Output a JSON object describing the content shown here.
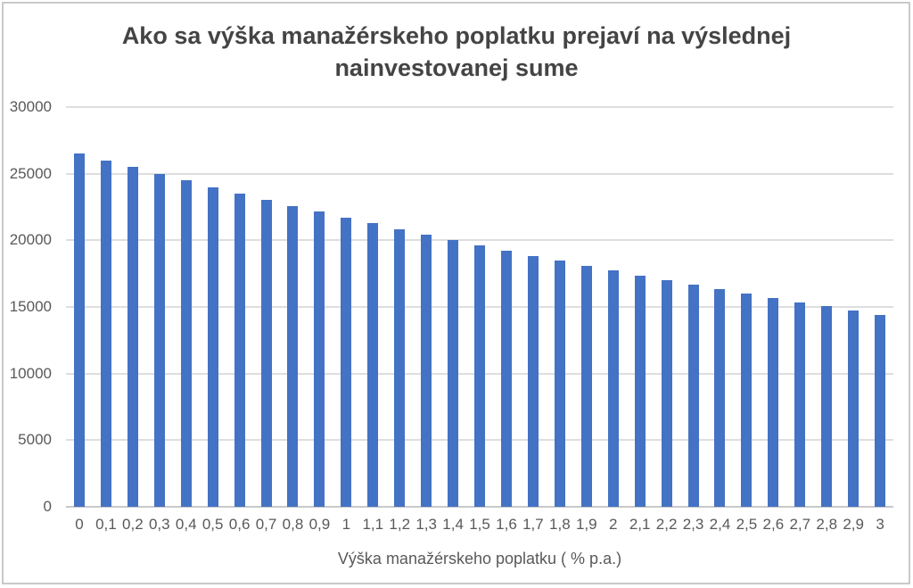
{
  "chart_data": {
    "type": "bar",
    "title": "Ako sa výška manažérskeho poplatku prejaví na výslednej nainvestovanej sume",
    "title_lines": [
      "Ako sa výška manažérskeho poplatku prejaví na výslednej",
      "nainvestovanej sume"
    ],
    "xlabel": "Výška manažérskeho poplatku ( % p.a.)",
    "ylabel": "",
    "categories": [
      "0",
      "0,1",
      "0,2",
      "0,3",
      "0,4",
      "0,5",
      "0,6",
      "0,7",
      "0,8",
      "0,9",
      "1",
      "1,1",
      "1,2",
      "1,3",
      "1,4",
      "1,5",
      "1,6",
      "1,7",
      "1,8",
      "1,9",
      "2",
      "2,1",
      "2,2",
      "2,3",
      "2,4",
      "2,5",
      "2,6",
      "2,7",
      "2,8",
      "2,9",
      "3"
    ],
    "values": [
      26533,
      26007,
      25492,
      24987,
      24489,
      24003,
      23525,
      23056,
      22596,
      22145,
      21702,
      21268,
      20842,
      20424,
      20014,
      19612,
      19217,
      18830,
      18451,
      18079,
      17714,
      17356,
      17005,
      16660,
      16323,
      15991,
      15666,
      15348,
      15035,
      14729,
      14428
    ],
    "yticks": [
      0,
      5000,
      10000,
      15000,
      20000,
      25000,
      30000
    ],
    "ylim": [
      0,
      30000
    ],
    "grid": true,
    "legend": false,
    "decimal_separator": ",",
    "bar_color": "#4472C4",
    "gridline_color": "#DEDEDE",
    "axis_line_color": "#C9C9C9",
    "frame_color": "#C9C9C9",
    "title_color": "#444444",
    "label_color": "#595959"
  }
}
